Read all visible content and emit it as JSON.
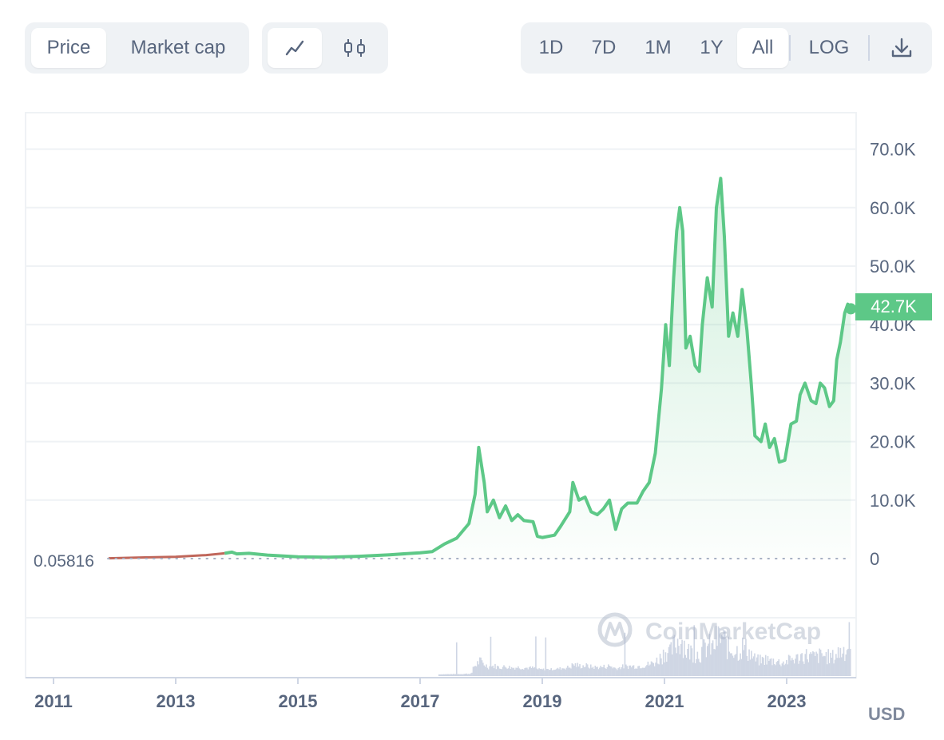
{
  "toolbar": {
    "metric_tabs": [
      {
        "label": "Price",
        "active": true
      },
      {
        "label": "Market cap",
        "active": false
      }
    ],
    "chart_types": [
      {
        "icon": "line-chart-icon",
        "active": true
      },
      {
        "icon": "candlestick-icon",
        "active": false
      }
    ],
    "ranges": [
      {
        "label": "1D",
        "active": false
      },
      {
        "label": "7D",
        "active": false
      },
      {
        "label": "1M",
        "active": false
      },
      {
        "label": "1Y",
        "active": false
      },
      {
        "label": "All",
        "active": true
      }
    ],
    "log_label": "LOG",
    "download_icon": "download-icon"
  },
  "chart_data": {
    "type": "area",
    "title": "",
    "xlabel": "",
    "ylabel": "",
    "currency_label": "USD",
    "watermark": "CoinMarketCap",
    "ylim": [
      0,
      75000
    ],
    "y_ticks": [
      0,
      10000,
      20000,
      30000,
      40000,
      50000,
      60000,
      70000
    ],
    "y_tick_labels": [
      "0",
      "10.0K",
      "20.0K",
      "30.0K",
      "40.0K",
      "50.0K",
      "60.0K",
      "70.0K"
    ],
    "x_ticks": [
      2011,
      2013,
      2015,
      2017,
      2019,
      2021,
      2023
    ],
    "x_tick_labels": [
      "2011",
      "2013",
      "2015",
      "2017",
      "2019",
      "2021",
      "2023"
    ],
    "xlim": [
      2010.57,
      2024.2
    ],
    "start_label": "0.05816",
    "current_label": "42.7K",
    "current_value": 42700,
    "colors": {
      "line": "#5dc887",
      "fill": "#5dc887",
      "early_line": "#c0675b",
      "badge": "#5dc887",
      "volume": "#cfd6e4"
    },
    "series": [
      {
        "values": [
          [
            2011.9,
            60
          ],
          [
            2012.5,
            200
          ],
          [
            2013.0,
            300
          ],
          [
            2013.5,
            600
          ],
          [
            2013.8,
            900
          ],
          [
            2013.92,
            1100
          ],
          [
            2014.0,
            800
          ],
          [
            2014.2,
            900
          ],
          [
            2014.5,
            600
          ],
          [
            2015.0,
            300
          ],
          [
            2015.5,
            250
          ],
          [
            2016.0,
            400
          ],
          [
            2016.5,
            650
          ],
          [
            2017.0,
            1000
          ],
          [
            2017.2,
            1200
          ],
          [
            2017.4,
            2500
          ],
          [
            2017.6,
            3500
          ],
          [
            2017.8,
            6000
          ],
          [
            2017.9,
            11000
          ],
          [
            2017.96,
            19000
          ],
          [
            2018.05,
            13000
          ],
          [
            2018.1,
            8000
          ],
          [
            2018.2,
            10000
          ],
          [
            2018.3,
            7000
          ],
          [
            2018.4,
            9000
          ],
          [
            2018.5,
            6500
          ],
          [
            2018.6,
            7500
          ],
          [
            2018.7,
            6500
          ],
          [
            2018.85,
            6300
          ],
          [
            2018.92,
            3800
          ],
          [
            2019.0,
            3600
          ],
          [
            2019.2,
            4000
          ],
          [
            2019.3,
            5500
          ],
          [
            2019.45,
            8000
          ],
          [
            2019.5,
            13000
          ],
          [
            2019.6,
            10000
          ],
          [
            2019.7,
            10500
          ],
          [
            2019.8,
            8000
          ],
          [
            2019.9,
            7500
          ],
          [
            2020.0,
            8500
          ],
          [
            2020.1,
            10000
          ],
          [
            2020.2,
            5000
          ],
          [
            2020.3,
            8500
          ],
          [
            2020.4,
            9500
          ],
          [
            2020.55,
            9500
          ],
          [
            2020.65,
            11500
          ],
          [
            2020.75,
            13000
          ],
          [
            2020.85,
            18000
          ],
          [
            2020.95,
            29000
          ],
          [
            2021.02,
            40000
          ],
          [
            2021.08,
            33000
          ],
          [
            2021.15,
            48000
          ],
          [
            2021.2,
            56000
          ],
          [
            2021.25,
            60000
          ],
          [
            2021.3,
            56000
          ],
          [
            2021.35,
            36000
          ],
          [
            2021.42,
            38000
          ],
          [
            2021.5,
            33000
          ],
          [
            2021.57,
            32000
          ],
          [
            2021.62,
            40000
          ],
          [
            2021.7,
            48000
          ],
          [
            2021.78,
            43000
          ],
          [
            2021.85,
            60000
          ],
          [
            2021.92,
            65000
          ],
          [
            2021.98,
            55000
          ],
          [
            2022.05,
            38000
          ],
          [
            2022.12,
            42000
          ],
          [
            2022.2,
            38000
          ],
          [
            2022.27,
            46000
          ],
          [
            2022.35,
            39000
          ],
          [
            2022.42,
            30000
          ],
          [
            2022.48,
            21000
          ],
          [
            2022.58,
            20000
          ],
          [
            2022.65,
            23000
          ],
          [
            2022.72,
            19000
          ],
          [
            2022.8,
            20500
          ],
          [
            2022.88,
            16500
          ],
          [
            2022.97,
            16800
          ],
          [
            2023.07,
            23000
          ],
          [
            2023.16,
            23500
          ],
          [
            2023.22,
            28000
          ],
          [
            2023.3,
            30000
          ],
          [
            2023.4,
            27000
          ],
          [
            2023.48,
            26500
          ],
          [
            2023.55,
            30000
          ],
          [
            2023.62,
            29200
          ],
          [
            2023.7,
            26000
          ],
          [
            2023.77,
            27000
          ],
          [
            2023.82,
            34000
          ],
          [
            2023.88,
            37000
          ],
          [
            2023.95,
            42000
          ],
          [
            2024.0,
            43500
          ],
          [
            2024.05,
            42700
          ]
        ]
      }
    ]
  }
}
